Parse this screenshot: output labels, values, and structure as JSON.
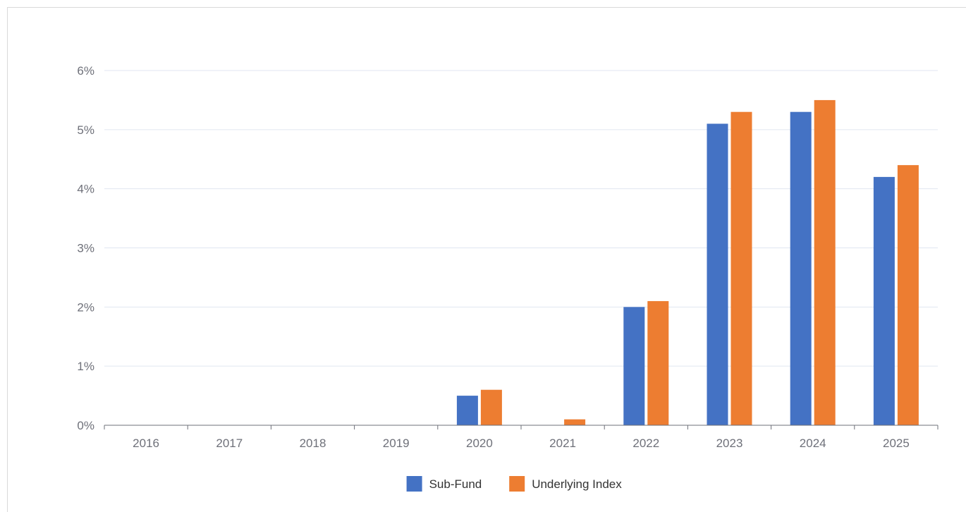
{
  "chart_data": {
    "type": "bar",
    "categories": [
      "2016",
      "2017",
      "2018",
      "2019",
      "2020",
      "2021",
      "2022",
      "2023",
      "2024",
      "2025"
    ],
    "series": [
      {
        "name": "Sub-Fund",
        "values": [
          0,
          0,
          0,
          0,
          0.5,
          0,
          2.0,
          5.1,
          5.3,
          4.2
        ],
        "color": "#4472c4"
      },
      {
        "name": "Underlying Index",
        "values": [
          0,
          0,
          0,
          0,
          0.6,
          0.1,
          2.1,
          5.3,
          5.5,
          4.4
        ],
        "color": "#ed7d31"
      }
    ],
    "yticks": [
      "0%",
      "1%",
      "2%",
      "3%",
      "4%",
      "5%",
      "6%"
    ],
    "ylim": [
      0,
      6
    ],
    "grid": true,
    "legend": "bottom-center"
  }
}
